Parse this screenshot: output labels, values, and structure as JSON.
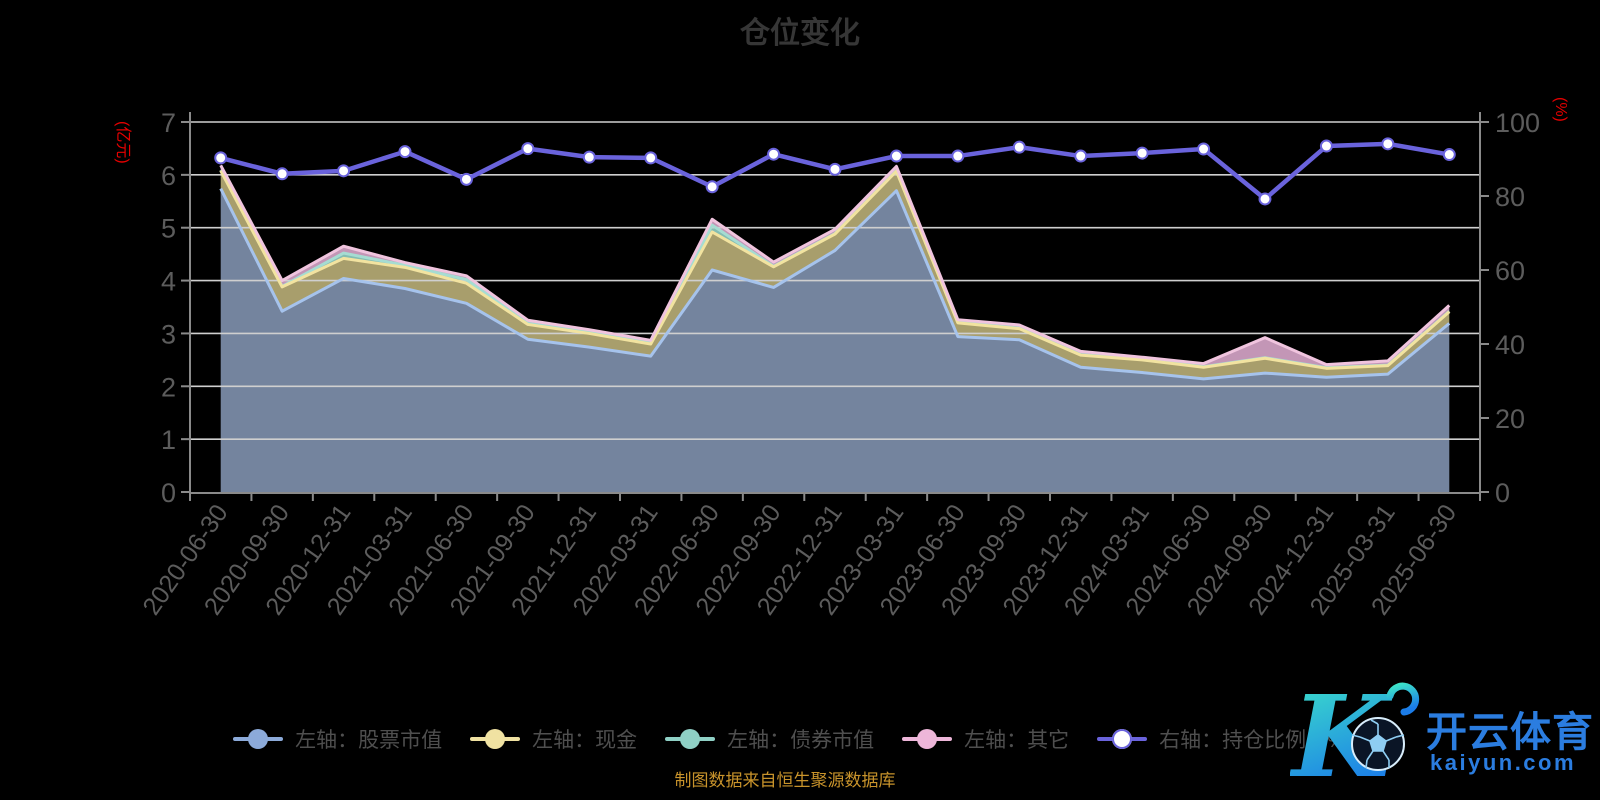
{
  "title": "仓位变化",
  "source_note": "制图数据来自恒生聚源数据库",
  "watermark": {
    "brand": "开云体育",
    "domain": "kaiyun.com",
    "logo": "kaiyun-k-football-logo",
    "brand_color": "#2b7de0",
    "logo_gradient": [
      "#3ee6c8",
      "#1b7ce8"
    ]
  },
  "left_axis": {
    "name": "(亿元)",
    "ticks": [
      "0",
      "1",
      "2",
      "3",
      "4",
      "5",
      "6",
      "7"
    ],
    "color": "#e60000"
  },
  "right_axis": {
    "name": "(%)",
    "ticks": [
      "0",
      "20",
      "40",
      "60",
      "80",
      "100"
    ],
    "color": "#e60000"
  },
  "legend": {
    "items": [
      {
        "label": "左轴：股票市值",
        "marker_color": "#8caad9",
        "type": "area"
      },
      {
        "label": "左轴：现金",
        "marker_color": "#f0e2a2",
        "type": "area"
      },
      {
        "label": "左轴：债券市值",
        "marker_color": "#8fd0c5",
        "type": "area"
      },
      {
        "label": "左轴：其它",
        "marker_color": "#edb6d9",
        "type": "area"
      },
      {
        "label": "右轴：持仓比例（%）",
        "marker_color": "#ffffff",
        "line_color": "#6a63dc",
        "type": "line"
      }
    ]
  },
  "chart_data": {
    "type": "area",
    "title": "仓位变化",
    "categories": [
      "2020-06-30",
      "2020-09-30",
      "2020-12-31",
      "2021-03-31",
      "2021-06-30",
      "2021-09-30",
      "2021-12-31",
      "2022-03-31",
      "2022-06-30",
      "2022-09-30",
      "2022-12-31",
      "2023-03-31",
      "2023-06-30",
      "2023-09-30",
      "2023-12-31",
      "2024-03-31",
      "2024-06-30",
      "2024-09-30",
      "2024-12-31",
      "2025-03-31",
      "2025-06-30"
    ],
    "left_ylim": [
      0,
      7
    ],
    "right_ylim": [
      0,
      100
    ],
    "grid": true,
    "legend_position": "bottom",
    "series": [
      {
        "name": "股票市值",
        "axis": "left",
        "kind": "stacked-area",
        "fill": "#74849e",
        "stroke": "#a6c3ec",
        "values": [
          5.74,
          3.42,
          4.04,
          3.85,
          3.57,
          2.89,
          2.74,
          2.57,
          4.2,
          3.87,
          4.57,
          5.7,
          2.94,
          2.88,
          2.36,
          2.26,
          2.14,
          2.25,
          2.17,
          2.23,
          3.19
        ]
      },
      {
        "name": "现金",
        "axis": "left",
        "kind": "stacked-area",
        "fill": "#a89e6c",
        "stroke": "#f2e3a0",
        "values": [
          0.34,
          0.46,
          0.38,
          0.4,
          0.38,
          0.28,
          0.26,
          0.23,
          0.72,
          0.39,
          0.31,
          0.37,
          0.26,
          0.21,
          0.23,
          0.24,
          0.22,
          0.28,
          0.17,
          0.16,
          0.22
        ]
      },
      {
        "name": "债券市值",
        "axis": "left",
        "kind": "stacked-area",
        "fill": "#84bdb2",
        "stroke": "#a6dcd2",
        "stroke_under": true,
        "values": [
          0.01,
          0.01,
          0.1,
          0.04,
          0.07,
          0.02,
          0.02,
          0.02,
          0.13,
          0.01,
          0.01,
          0.01,
          0.01,
          0.01,
          0.01,
          0.01,
          0.01,
          0.01,
          0.01,
          0.01,
          0.01
        ]
      },
      {
        "name": "其它",
        "axis": "left",
        "kind": "stacked-area",
        "fill": "#c396b6",
        "stroke": "#f0c4de",
        "values": [
          0.09,
          0.11,
          0.13,
          0.05,
          0.07,
          0.06,
          0.05,
          0.05,
          0.11,
          0.08,
          0.08,
          0.08,
          0.05,
          0.06,
          0.06,
          0.04,
          0.06,
          0.38,
          0.06,
          0.08,
          0.11
        ]
      },
      {
        "name": "持仓比例",
        "axis": "right",
        "kind": "line",
        "stroke": "#6a63dc",
        "marker": "#ffffff",
        "values": [
          90.3,
          86.0,
          86.8,
          92.0,
          84.5,
          92.8,
          90.5,
          90.3,
          82.5,
          91.3,
          87.2,
          90.8,
          90.8,
          93.2,
          90.8,
          91.6,
          92.7,
          79.2,
          93.5,
          94.1,
          91.2
        ]
      }
    ]
  }
}
